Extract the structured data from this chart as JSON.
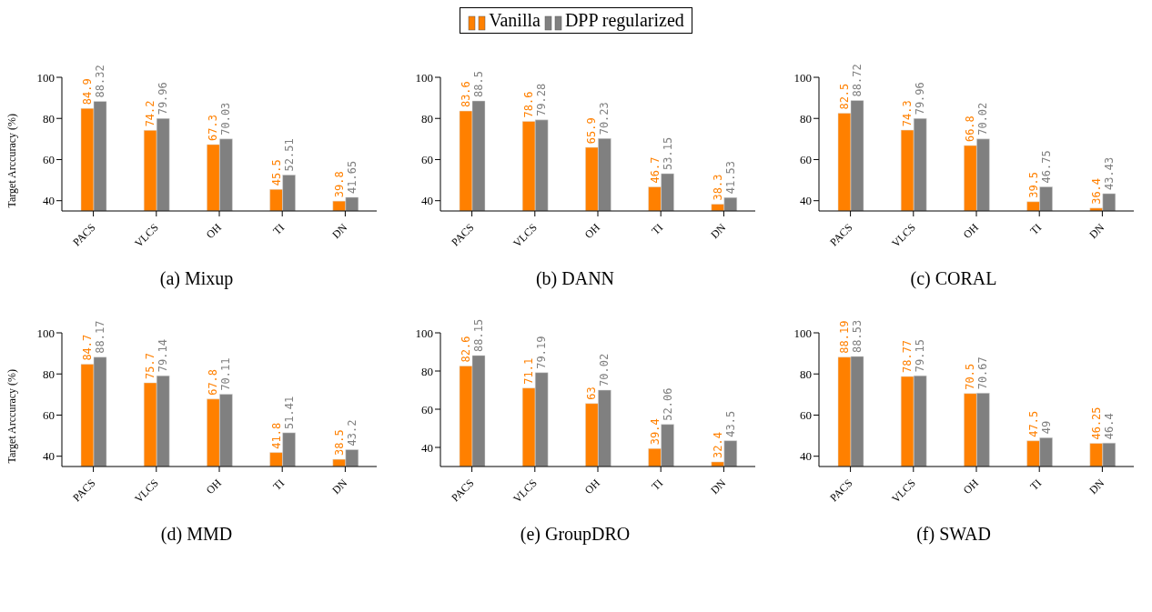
{
  "chart_data": [
    {
      "type": "bar",
      "title": "(a) Mixup",
      "ylabel": "Target Arccuracy (%)",
      "categories": [
        "PACS",
        "VLCS",
        "OH",
        "TI",
        "DN"
      ],
      "ylim": [
        35,
        100
      ],
      "yticks": [
        40,
        60,
        80,
        100
      ],
      "data_labels": true,
      "legend": "top",
      "series": [
        {
          "name": "Vanilla",
          "color": "#ff8000",
          "values": [
            84.9,
            74.2,
            67.3,
            45.5,
            39.8
          ]
        },
        {
          "name": "DPP regularized",
          "color": "#808080",
          "values": [
            88.32,
            79.96,
            70.03,
            52.51,
            41.65
          ]
        }
      ]
    },
    {
      "type": "bar",
      "title": "(b) DANN",
      "categories": [
        "PACS",
        "VLCS",
        "OH",
        "TI",
        "DN"
      ],
      "ylim": [
        35,
        100
      ],
      "yticks": [
        40,
        60,
        80,
        100
      ],
      "data_labels": true,
      "series": [
        {
          "color": "#ff8000",
          "values": [
            83.6,
            78.6,
            65.9,
            46.7,
            38.3
          ]
        },
        {
          "color": "#808080",
          "values": [
            88.5,
            79.28,
            70.23,
            53.15,
            41.53
          ]
        }
      ]
    },
    {
      "type": "bar",
      "title": "(c) CORAL",
      "categories": [
        "PACS",
        "VLCS",
        "OH",
        "TI",
        "DN"
      ],
      "ylim": [
        35,
        100
      ],
      "yticks": [
        40,
        60,
        80,
        100
      ],
      "data_labels": true,
      "series": [
        {
          "color": "#ff8000",
          "values": [
            82.5,
            74.3,
            66.8,
            39.5,
            36.4
          ]
        },
        {
          "color": "#808080",
          "values": [
            88.72,
            79.96,
            70.02,
            46.75,
            43.43
          ]
        }
      ]
    },
    {
      "type": "bar",
      "title": "(d) MMD",
      "ylabel": "Target Arccuracy (%)",
      "categories": [
        "PACS",
        "VLCS",
        "OH",
        "TI",
        "DN"
      ],
      "ylim": [
        35,
        100
      ],
      "yticks": [
        40,
        60,
        80,
        100
      ],
      "data_labels": true,
      "series": [
        {
          "color": "#ff8000",
          "values": [
            84.7,
            75.7,
            67.8,
            41.8,
            38.5
          ]
        },
        {
          "color": "#808080",
          "values": [
            88.17,
            79.14,
            70.11,
            51.41,
            43.2
          ]
        }
      ]
    },
    {
      "type": "bar",
      "title": "(e) GroupDRO",
      "categories": [
        "PACS",
        "VLCS",
        "OH",
        "TI",
        "DN"
      ],
      "ylim": [
        30,
        100
      ],
      "yticks": [
        40,
        60,
        80,
        100
      ],
      "data_labels": true,
      "series": [
        {
          "color": "#ff8000",
          "values": [
            82.6,
            71.1,
            63,
            39.4,
            32.4
          ]
        },
        {
          "color": "#808080",
          "values": [
            88.15,
            79.19,
            70.02,
            52.06,
            43.5
          ]
        }
      ]
    },
    {
      "type": "bar",
      "title": "(f) SWAD",
      "categories": [
        "PACS",
        "VLCS",
        "OH",
        "TI",
        "DN"
      ],
      "ylim": [
        35,
        100
      ],
      "yticks": [
        40,
        60,
        80,
        100
      ],
      "data_labels": true,
      "series": [
        {
          "color": "#ff8000",
          "values": [
            88.19,
            78.77,
            70.5,
            47.5,
            46.25
          ]
        },
        {
          "color": "#808080",
          "values": [
            88.53,
            79.15,
            70.67,
            49,
            46.4
          ]
        }
      ]
    }
  ]
}
